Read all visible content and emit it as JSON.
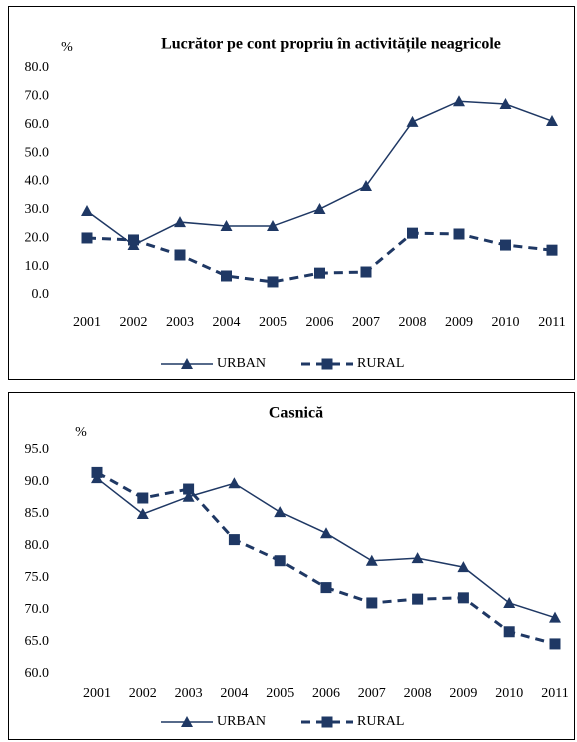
{
  "chart_data": [
    {
      "type": "line",
      "title": "Lucrător pe cont propriu în activitățile neagricole",
      "y_label": "%",
      "categories": [
        "2001",
        "2002",
        "2003",
        "2004",
        "2005",
        "2006",
        "2007",
        "2008",
        "2009",
        "2010",
        "2011"
      ],
      "series": [
        {
          "name": "URBAN",
          "color": "#1f3864",
          "marker": "triangle",
          "dashed": false,
          "values": [
            29.6,
            17.6,
            25.7,
            24.3,
            24.3,
            30.3,
            38.4,
            61.0,
            68.3,
            67.3,
            61.3
          ]
        },
        {
          "name": "RURAL",
          "color": "#1f3864",
          "marker": "square",
          "dashed": true,
          "values": [
            20.1,
            19.4,
            14.1,
            6.7,
            4.6,
            7.7,
            8.1,
            21.8,
            21.5,
            17.6,
            15.8
          ]
        }
      ],
      "ylim": [
        0,
        80
      ],
      "yticks": [
        {
          "value": 0,
          "label": "0.0"
        },
        {
          "value": 10,
          "label": "10.0"
        },
        {
          "value": 20,
          "label": "20.0"
        },
        {
          "value": 30,
          "label": "30.0"
        },
        {
          "value": 40,
          "label": "40.0"
        },
        {
          "value": 50,
          "label": "50.0"
        },
        {
          "value": 60,
          "label": "60.0"
        },
        {
          "value": 70,
          "label": "70.0"
        },
        {
          "value": 80,
          "label": "80.0"
        }
      ],
      "grid": false,
      "legend": "bottom"
    },
    {
      "type": "line",
      "title": "Casnică",
      "y_label": "%",
      "categories": [
        "2001",
        "2002",
        "2003",
        "2004",
        "2005",
        "2006",
        "2007",
        "2008",
        "2009",
        "2010",
        "2011"
      ],
      "series": [
        {
          "name": "URBAN",
          "color": "#1f3864",
          "marker": "triangle",
          "dashed": false,
          "values": [
            90.6,
            85.0,
            87.7,
            89.8,
            85.3,
            82.0,
            77.7,
            78.1,
            76.7,
            71.1,
            68.8
          ]
        },
        {
          "name": "RURAL",
          "color": "#1f3864",
          "marker": "square",
          "dashed": true,
          "values": [
            91.5,
            87.5,
            88.9,
            81.0,
            77.7,
            73.5,
            71.1,
            71.7,
            71.9,
            66.6,
            64.7
          ]
        }
      ],
      "ylim": [
        60,
        95
      ],
      "yticks": [
        {
          "value": 60,
          "label": "60.0"
        },
        {
          "value": 65,
          "label": "65.0"
        },
        {
          "value": 70,
          "label": "70.0"
        },
        {
          "value": 75,
          "label": "75.0"
        },
        {
          "value": 80,
          "label": "80.0"
        },
        {
          "value": 85,
          "label": "85.0"
        },
        {
          "value": 90,
          "label": "90.0"
        },
        {
          "value": 95,
          "label": "95.0"
        }
      ],
      "grid": false,
      "legend": "bottom"
    }
  ]
}
